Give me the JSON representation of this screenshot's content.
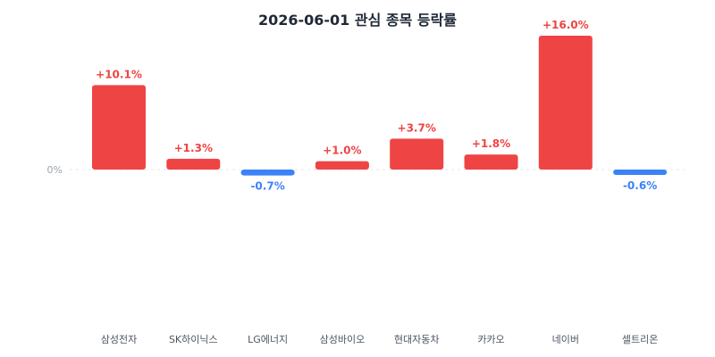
{
  "chart_data": {
    "type": "bar",
    "title": "2026-06-01 관심 종목 등락률",
    "categories": [
      "삼성전자",
      "SK하이닉스",
      "LG에너지",
      "삼성바이오",
      "현대자동차",
      "카카오",
      "네이버",
      "셀트리온"
    ],
    "values": [
      10.1,
      1.3,
      -0.7,
      1.0,
      3.7,
      1.8,
      16.0,
      -0.6
    ],
    "value_labels": [
      "+10.1%",
      "+1.3%",
      "-0.7%",
      "+1.0%",
      "+3.7%",
      "+1.8%",
      "+16.0%",
      "-0.6%"
    ],
    "zero_label": "0%",
    "ylim": [
      -16.0,
      16.0
    ],
    "grid": false,
    "zero_line": "dashed",
    "colors": {
      "positive": "#ef4444",
      "negative": "#3b82f6",
      "zero_line": "#e5e7eb",
      "title": "#1f2937"
    }
  }
}
